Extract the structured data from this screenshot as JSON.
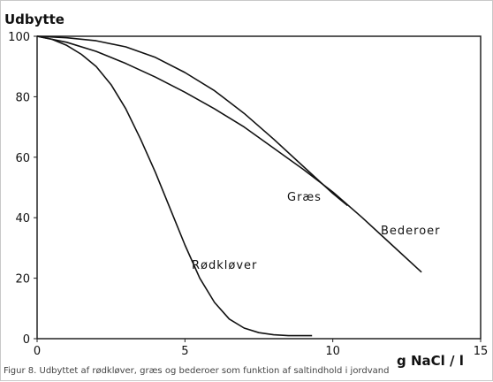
{
  "caption": "Figur 8. Udbyttet af rødkløver, græs og bederoer som funktion af saltindhold i jordvand",
  "chart_data": {
    "type": "line",
    "title": "",
    "ylabel": "Udbytte",
    "xlabel": "g  NaCl / l",
    "xlim": [
      0,
      15
    ],
    "ylim": [
      0,
      100
    ],
    "xticks": [
      0,
      5,
      10,
      15
    ],
    "yticks": [
      0,
      20,
      40,
      60,
      80,
      100
    ],
    "grid": false,
    "series": [
      {
        "name": "Rødkløver",
        "color": "#111111",
        "x": [
          0,
          0.5,
          1,
          1.5,
          2,
          2.5,
          3,
          3.5,
          4,
          4.5,
          5,
          5.5,
          6,
          6.5,
          7,
          7.5,
          8,
          8.5,
          9,
          9.3
        ],
        "y": [
          100,
          99,
          97,
          94,
          90,
          84,
          76,
          66,
          55,
          43,
          31,
          20,
          12,
          6.5,
          3.5,
          2,
          1.3,
          1,
          1,
          1
        ]
      },
      {
        "name": "Græs",
        "color": "#111111",
        "x": [
          0,
          1,
          2,
          3,
          4,
          5,
          6,
          7,
          8,
          9,
          10,
          10.5
        ],
        "y": [
          100,
          99.5,
          98.5,
          96.5,
          93,
          88,
          82,
          74.5,
          66,
          57,
          48,
          44
        ]
      },
      {
        "name": "Bederoer",
        "color": "#111111",
        "x": [
          0,
          1,
          2,
          3,
          4,
          5,
          6,
          7,
          8,
          9,
          10,
          11,
          12,
          13
        ],
        "y": [
          100,
          98,
          95,
          91,
          86.5,
          81.5,
          76,
          70,
          63,
          56,
          48.5,
          40,
          31,
          22
        ]
      }
    ]
  }
}
